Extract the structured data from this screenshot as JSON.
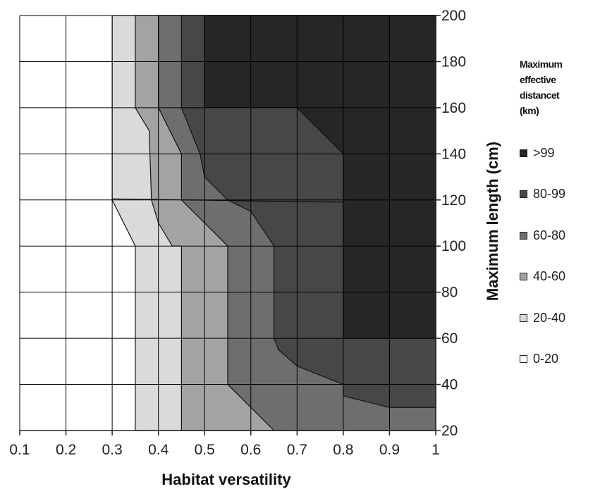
{
  "chart_data": {
    "type": "heatmap",
    "subtype": "filled-contour",
    "xlabel": "Habitat versatility",
    "ylabel": "Maximum length (cm)",
    "xlim": [
      0.1,
      1.0
    ],
    "ylim": [
      20,
      200
    ],
    "x_ticks": [
      "0.1",
      "0.2",
      "0.3",
      "0.4",
      "0.5",
      "0.6",
      "0.7",
      "0.8",
      "0.9",
      "1"
    ],
    "y_ticks": [
      "20",
      "40",
      "60",
      "80",
      "100",
      "120",
      "140",
      "160",
      "180",
      "200"
    ],
    "y_axis_side": "right",
    "grid": true,
    "legend": {
      "position": "right",
      "title_lines": [
        "Maximum",
        "effective",
        "distancet",
        "(km)"
      ],
      "entries": [
        {
          "label": ">99",
          "color": "#262626"
        },
        {
          "label": "80-99",
          "color": "#474747"
        },
        {
          "label": "60-80",
          "color": "#6e6e6e"
        },
        {
          "label": "40-60",
          "color": "#a3a3a3"
        },
        {
          "label": "20-40",
          "color": "#dadada"
        },
        {
          "label": "0-20",
          "color": "#ffffff"
        }
      ]
    },
    "bands": [
      {
        "label": "20-40",
        "color": "#dadada",
        "boundary": [
          [
            0.3,
            200
          ],
          [
            0.3,
            120
          ],
          [
            0.35,
            100
          ],
          [
            0.35,
            20
          ],
          [
            1.0,
            20
          ],
          [
            1.0,
            200
          ]
        ]
      },
      {
        "label": "40-60",
        "color": "#a3a3a3",
        "boundary": [
          [
            0.35,
            200
          ],
          [
            0.35,
            160
          ],
          [
            0.38,
            150
          ],
          [
            0.385,
            120
          ],
          [
            0.4,
            110
          ],
          [
            0.43,
            100
          ],
          [
            0.45,
            100
          ],
          [
            0.45,
            20
          ],
          [
            1.0,
            20
          ],
          [
            1.0,
            200
          ]
        ]
      },
      {
        "label": "60-80",
        "color": "#6e6e6e",
        "boundary": [
          [
            0.4,
            200
          ],
          [
            0.4,
            160
          ],
          [
            0.45,
            140
          ],
          [
            0.45,
            120
          ],
          [
            0.5,
            110
          ],
          [
            0.55,
            100
          ],
          [
            0.55,
            40
          ],
          [
            0.6,
            30
          ],
          [
            0.65,
            20
          ],
          [
            1.0,
            20
          ],
          [
            1.0,
            200
          ]
        ]
      },
      {
        "label": "80-99",
        "color": "#474747",
        "boundary": [
          [
            0.45,
            200
          ],
          [
            0.45,
            160
          ],
          [
            0.49,
            140
          ],
          [
            0.5,
            130
          ],
          [
            0.55,
            120
          ],
          [
            0.6,
            115
          ],
          [
            0.65,
            100
          ],
          [
            0.65,
            60
          ],
          [
            0.66,
            55
          ],
          [
            0.7,
            48
          ],
          [
            0.8,
            40
          ],
          [
            0.8,
            35
          ],
          [
            0.9,
            30
          ],
          [
            1.0,
            30
          ],
          [
            1.0,
            200
          ]
        ]
      },
      {
        "label": ">99",
        "color": "#262626",
        "boundary": [
          [
            0.5,
            200
          ],
          [
            0.5,
            160
          ],
          [
            0.7,
            160
          ],
          [
            0.8,
            140
          ],
          [
            0.8,
            60
          ],
          [
            1.0,
            60
          ],
          [
            1.0,
            200
          ]
        ]
      }
    ],
    "base_color": "#ffffff",
    "extra_gridlines": [
      {
        "from": [
          0.3,
          120.5
        ],
        "to": [
          0.8,
          119
        ]
      }
    ]
  }
}
